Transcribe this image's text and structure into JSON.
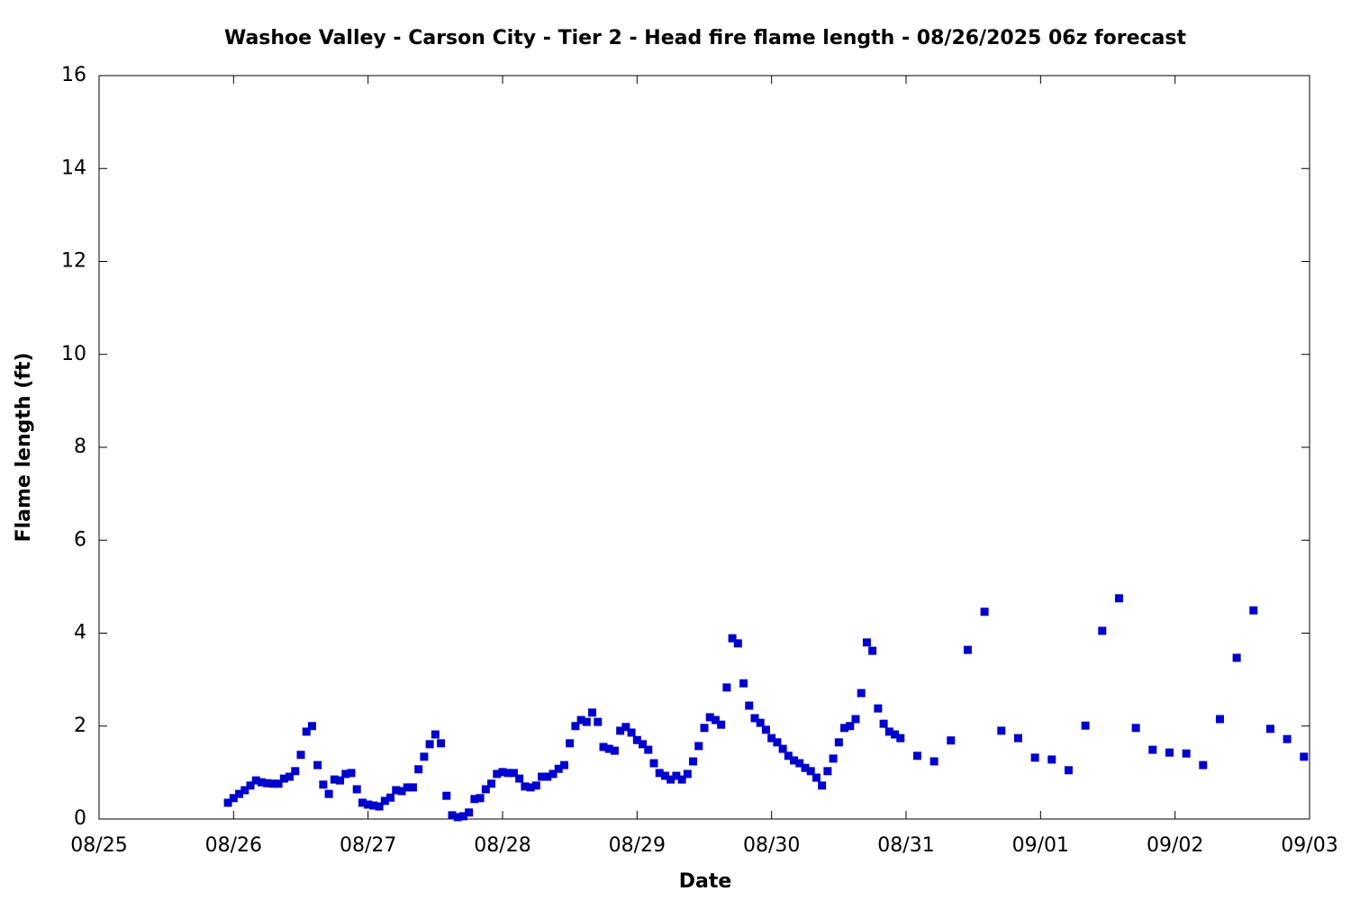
{
  "chart_data": {
    "type": "scatter",
    "title": "Washoe Valley - Carson City - Tier 2 - Head fire flame length - 08/26/2025 06z forecast",
    "xlabel": "Date",
    "ylabel": "Flame length (ft)",
    "color": "#0000cc",
    "grid": false,
    "xlim": [
      0,
      216
    ],
    "xticks": [
      {
        "value": 0,
        "label": "08/25"
      },
      {
        "value": 24,
        "label": "08/26"
      },
      {
        "value": 48,
        "label": "08/27"
      },
      {
        "value": 72,
        "label": "08/28"
      },
      {
        "value": 96,
        "label": "08/29"
      },
      {
        "value": 120,
        "label": "08/30"
      },
      {
        "value": 144,
        "label": "08/31"
      },
      {
        "value": 168,
        "label": "09/01"
      },
      {
        "value": 192,
        "label": "09/02"
      },
      {
        "value": 216,
        "label": "09/03"
      }
    ],
    "ylim": [
      0,
      16
    ],
    "yticks": [
      0,
      2,
      4,
      6,
      8,
      10,
      12,
      14,
      16
    ],
    "x": [
      23,
      24,
      25,
      26,
      27,
      28,
      29,
      30,
      31,
      32,
      33,
      34,
      35,
      36,
      37,
      38,
      39,
      40,
      41,
      42,
      43,
      44,
      45,
      46,
      47,
      48,
      49,
      50,
      51,
      52,
      53,
      54,
      55,
      56,
      57,
      58,
      59,
      60,
      61,
      62,
      63,
      64,
      65,
      66,
      67,
      68,
      69,
      70,
      71,
      72,
      73,
      74,
      75,
      76,
      77,
      78,
      79,
      80,
      81,
      82,
      83,
      84,
      85,
      86,
      87,
      88,
      89,
      90,
      91,
      92,
      93,
      94,
      95,
      96,
      97,
      98,
      99,
      100,
      101,
      102,
      103,
      104,
      105,
      106,
      107,
      108,
      109,
      110,
      111,
      112,
      113,
      114,
      115,
      116,
      117,
      118,
      119,
      120,
      121,
      122,
      123,
      124,
      125,
      126,
      127,
      128,
      129,
      130,
      131,
      132,
      133,
      134,
      135,
      136,
      137,
      138,
      139,
      140,
      141,
      142,
      143,
      146,
      149,
      152,
      155,
      158,
      161,
      164,
      167,
      170,
      173,
      176,
      179,
      182,
      185,
      188,
      191,
      194,
      197,
      200,
      203,
      206,
      209,
      212,
      215
    ],
    "values": [
      0.35,
      0.45,
      0.54,
      0.62,
      0.72,
      0.83,
      0.79,
      0.77,
      0.76,
      0.76,
      0.87,
      0.91,
      1.03,
      1.38,
      1.88,
      2.0,
      1.16,
      0.74,
      0.54,
      0.85,
      0.83,
      0.97,
      0.99,
      0.64,
      0.35,
      0.31,
      0.29,
      0.27,
      0.39,
      0.46,
      0.62,
      0.6,
      0.68,
      0.68,
      1.07,
      1.34,
      1.61,
      1.82,
      1.63,
      0.5,
      0.08,
      0.04,
      0.06,
      0.14,
      0.43,
      0.45,
      0.64,
      0.76,
      0.97,
      1.01,
      0.99,
      0.99,
      0.87,
      0.7,
      0.68,
      0.72,
      0.91,
      0.91,
      0.97,
      1.08,
      1.16,
      1.63,
      2.0,
      2.13,
      2.09,
      2.29,
      2.09,
      1.55,
      1.51,
      1.47,
      1.9,
      1.98,
      1.86,
      1.7,
      1.61,
      1.49,
      1.2,
      0.99,
      0.93,
      0.85,
      0.93,
      0.85,
      0.97,
      1.24,
      1.57,
      1.96,
      2.19,
      2.13,
      2.03,
      2.83,
      3.89,
      3.78,
      2.92,
      2.44,
      2.17,
      2.07,
      1.92,
      1.74,
      1.65,
      1.51,
      1.36,
      1.26,
      1.2,
      1.1,
      1.03,
      0.89,
      0.72,
      1.03,
      1.3,
      1.65,
      1.96,
      2.0,
      2.15,
      2.71,
      3.8,
      3.62,
      2.38,
      2.05,
      1.88,
      1.82,
      1.74,
      1.36,
      1.24,
      1.69,
      3.64,
      4.46,
      1.9,
      1.74,
      1.32,
      1.28,
      1.05,
      2.01,
      4.05,
      4.75,
      1.96,
      1.49,
      1.43,
      1.41,
      1.16,
      2.15,
      3.47,
      4.49,
      1.94,
      1.72,
      1.34
    ]
  }
}
